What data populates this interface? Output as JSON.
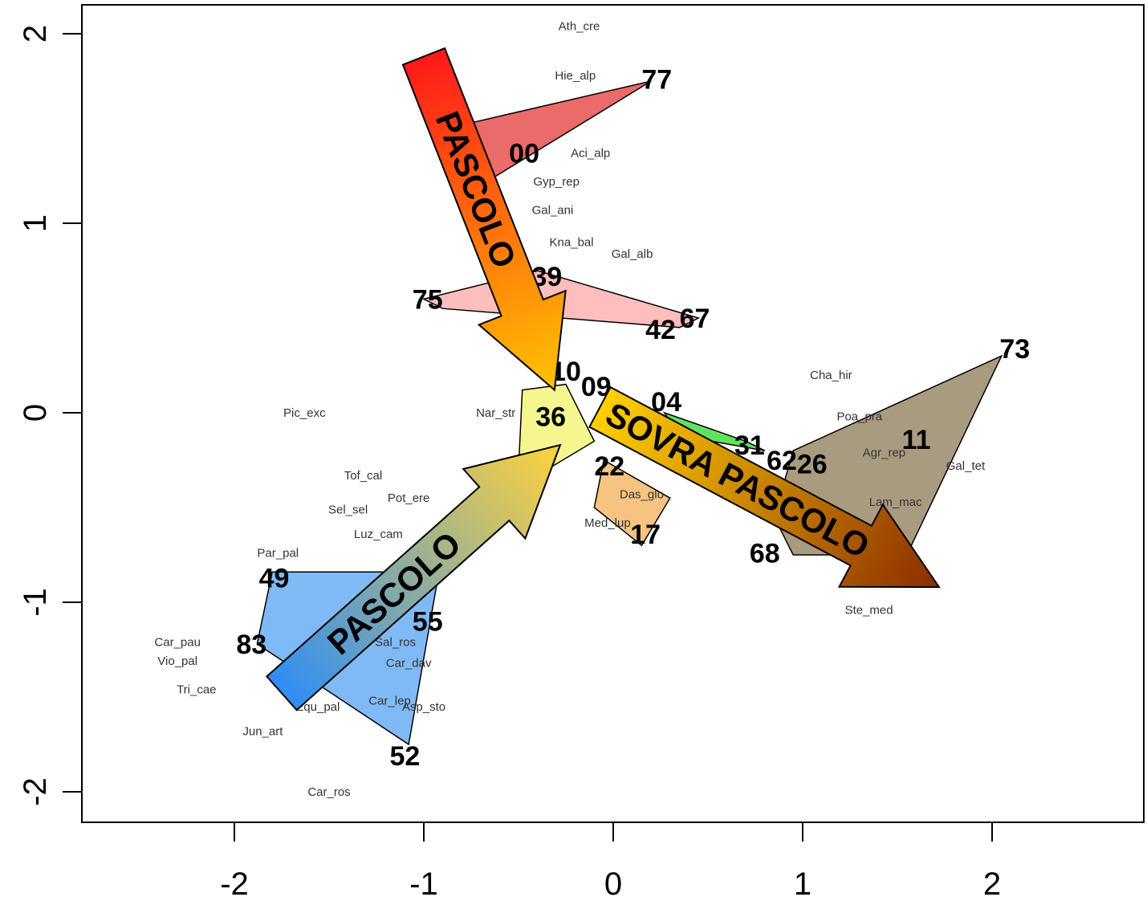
{
  "chart_data": {
    "type": "scatter",
    "title": "",
    "xlabel": "",
    "ylabel": "",
    "xlim": [
      -2.8,
      2.8
    ],
    "ylim": [
      -2.15,
      2.15
    ],
    "grid": false,
    "x_ticks": [
      {
        "value": -2,
        "label": "-2"
      },
      {
        "value": -1,
        "label": "-1"
      },
      {
        "value": 0,
        "label": "0"
      },
      {
        "value": 1,
        "label": "1"
      },
      {
        "value": 2,
        "label": "2"
      }
    ],
    "y_ticks": [
      {
        "value": -2,
        "label": "-2"
      },
      {
        "value": -1,
        "label": "-1"
      },
      {
        "value": 0,
        "label": "0"
      },
      {
        "value": 1,
        "label": "1"
      },
      {
        "value": 2,
        "label": "2"
      }
    ],
    "hulls": [
      {
        "color": "#e85050",
        "points": [
          [
            -0.75,
            1.53
          ],
          [
            0.2,
            1.75
          ],
          [
            -0.65,
            1.23
          ]
        ]
      },
      {
        "color": "#ffb3b3",
        "points": [
          [
            -1.0,
            0.6
          ],
          [
            -0.4,
            0.75
          ],
          [
            0.45,
            0.5
          ],
          [
            0.35,
            0.45
          ],
          [
            -0.9,
            0.55
          ]
        ]
      },
      {
        "color": "#f5f57a",
        "points": [
          [
            -0.48,
            0.12
          ],
          [
            -0.25,
            0.15
          ],
          [
            -0.1,
            -0.15
          ],
          [
            -0.35,
            -0.3
          ],
          [
            -0.5,
            -0.3
          ]
        ]
      },
      {
        "color": "#f5b86a",
        "points": [
          [
            -0.05,
            -0.25
          ],
          [
            0.3,
            -0.45
          ],
          [
            0.15,
            -0.7
          ],
          [
            -0.1,
            -0.5
          ]
        ]
      },
      {
        "color": "#44dd44",
        "points": [
          [
            0.27,
            0.0
          ],
          [
            0.7,
            -0.15
          ],
          [
            0.8,
            -0.2
          ],
          [
            0.35,
            -0.12
          ]
        ]
      },
      {
        "color": "#9a8a6a",
        "points": [
          [
            0.95,
            -0.2
          ],
          [
            2.05,
            0.3
          ],
          [
            1.55,
            -0.75
          ],
          [
            0.95,
            -0.75
          ],
          [
            0.85,
            -0.55
          ]
        ]
      },
      {
        "color": "#6aaef5",
        "points": [
          [
            -1.8,
            -0.84
          ],
          [
            -0.92,
            -0.84
          ],
          [
            -1.08,
            -1.75
          ],
          [
            -1.88,
            -1.22
          ]
        ]
      }
    ],
    "sites": [
      {
        "label": "77",
        "x": 0.23,
        "y": 1.76
      },
      {
        "label": "00",
        "x": -0.47,
        "y": 1.37
      },
      {
        "label": "39",
        "x": -0.35,
        "y": 0.72
      },
      {
        "label": "75",
        "x": -0.98,
        "y": 0.6
      },
      {
        "label": "67",
        "x": 0.43,
        "y": 0.5
      },
      {
        "label": "42",
        "x": 0.25,
        "y": 0.44
      },
      {
        "label": "73",
        "x": 2.12,
        "y": 0.34
      },
      {
        "label": "10",
        "x": -0.25,
        "y": 0.22
      },
      {
        "label": "09",
        "x": -0.09,
        "y": 0.14
      },
      {
        "label": "04",
        "x": 0.28,
        "y": 0.06
      },
      {
        "label": "36",
        "x": -0.33,
        "y": -0.02
      },
      {
        "label": "11",
        "x": 1.6,
        "y": -0.14
      },
      {
        "label": "31",
        "x": 0.72,
        "y": -0.17
      },
      {
        "label": "62",
        "x": 0.89,
        "y": -0.25
      },
      {
        "label": "26",
        "x": 1.05,
        "y": -0.27
      },
      {
        "label": "22",
        "x": -0.02,
        "y": -0.28
      },
      {
        "label": "17",
        "x": 0.17,
        "y": -0.64
      },
      {
        "label": "68",
        "x": 0.8,
        "y": -0.74
      },
      {
        "label": "49",
        "x": -1.79,
        "y": -0.87
      },
      {
        "label": "55",
        "x": -0.98,
        "y": -1.1
      },
      {
        "label": "83",
        "x": -1.91,
        "y": -1.22
      },
      {
        "label": "52",
        "x": -1.1,
        "y": -1.81
      }
    ],
    "species": [
      {
        "label": "Ath_cre",
        "x": -0.18,
        "y": 2.04
      },
      {
        "label": "Hie_alp",
        "x": -0.2,
        "y": 1.78
      },
      {
        "label": "Aci_alp",
        "x": -0.12,
        "y": 1.37
      },
      {
        "label": "Gyp_rep",
        "x": -0.3,
        "y": 1.22
      },
      {
        "label": "Gal_ani",
        "x": -0.32,
        "y": 1.07
      },
      {
        "label": "Kna_bal",
        "x": -0.22,
        "y": 0.9
      },
      {
        "label": "Gal_alb",
        "x": 0.1,
        "y": 0.84
      },
      {
        "label": "Cha_hir",
        "x": 1.15,
        "y": 0.2
      },
      {
        "label": "Pic_exc",
        "x": -1.63,
        "y": 0.0
      },
      {
        "label": "Nar_str",
        "x": -0.62,
        "y": 0.0
      },
      {
        "label": "Poa_pra",
        "x": 1.3,
        "y": -0.02
      },
      {
        "label": "Agr_rep",
        "x": 1.43,
        "y": -0.21
      },
      {
        "label": "Gal_tet",
        "x": 1.86,
        "y": -0.28
      },
      {
        "label": "Lam_mac",
        "x": 1.49,
        "y": -0.47
      },
      {
        "label": "Tof_cal",
        "x": -1.32,
        "y": -0.33
      },
      {
        "label": "Pot_ere",
        "x": -1.08,
        "y": -0.45
      },
      {
        "label": "Sel_sel",
        "x": -1.4,
        "y": -0.51
      },
      {
        "label": "Luz_cam",
        "x": -1.24,
        "y": -0.64
      },
      {
        "label": "Par_pal",
        "x": -1.77,
        "y": -0.74
      },
      {
        "label": "Ste_med",
        "x": 1.35,
        "y": -1.04
      },
      {
        "label": "Car_pau",
        "x": -2.3,
        "y": -1.21
      },
      {
        "label": "Vio_pal",
        "x": -2.3,
        "y": -1.31
      },
      {
        "label": "Tri_cae",
        "x": -2.2,
        "y": -1.46
      },
      {
        "label": "Sal_ros",
        "x": -1.15,
        "y": -1.21
      },
      {
        "label": "Car_dav",
        "x": -1.08,
        "y": -1.32
      },
      {
        "label": "Equ_pal",
        "x": -1.56,
        "y": -1.55
      },
      {
        "label": "Car_lep",
        "x": -1.18,
        "y": -1.52
      },
      {
        "label": "Asp_sto",
        "x": -1.0,
        "y": -1.55
      },
      {
        "label": "Jun_art",
        "x": -1.85,
        "y": -1.68
      },
      {
        "label": "Car_ros",
        "x": -1.5,
        "y": -2.0
      },
      {
        "label": "Med_lup",
        "x": -0.03,
        "y": -0.58
      },
      {
        "label": "Das_glo",
        "x": 0.15,
        "y": -0.43
      }
    ],
    "arrows": [
      {
        "label": "PASCOLO",
        "from": [
          -1.0,
          1.88
        ],
        "to": [
          -0.31,
          0.12
        ],
        "color_start": "#ff1a1a",
        "color_end": "#ffc400"
      },
      {
        "label": "PASCOLO",
        "from": [
          -1.75,
          -1.48
        ],
        "to": [
          -0.28,
          -0.17
        ],
        "color_start": "#2f8df5",
        "color_end": "#ffd23a"
      },
      {
        "label": "SOVRA PASCOLO",
        "from": [
          -0.07,
          0.03
        ],
        "to": [
          1.72,
          -0.92
        ],
        "color_start": "#ffd000",
        "color_end": "#8a2d00"
      }
    ]
  }
}
